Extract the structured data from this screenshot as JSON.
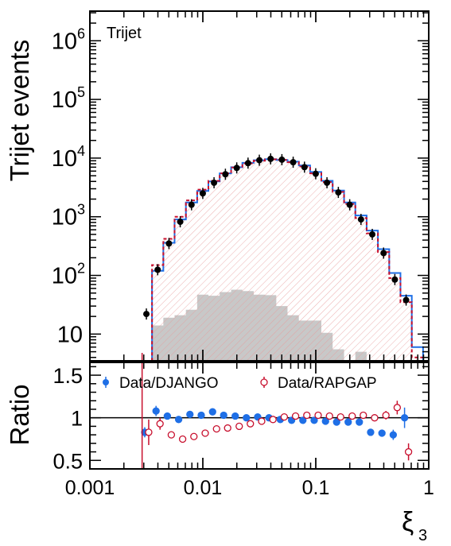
{
  "chart_data": [
    {
      "type": "histogram",
      "panel": "main",
      "label": "Trijet",
      "ylabel": "Trijet events",
      "xscale": "log",
      "yscale": "log",
      "xlim": [
        0.001,
        1
      ],
      "ylim": [
        3.5,
        3200000
      ],
      "y_ticks": [
        {
          "value": 10,
          "base": "10",
          "exp": ""
        },
        {
          "value": 100,
          "base": "10",
          "exp": "2"
        },
        {
          "value": 1000,
          "base": "10",
          "exp": "3"
        },
        {
          "value": 10000,
          "base": "10",
          "exp": "4"
        },
        {
          "value": 100000,
          "base": "10",
          "exp": "5"
        },
        {
          "value": 1000000,
          "base": "10",
          "exp": "6"
        }
      ],
      "bin_edges": [
        0.00282,
        0.00355,
        0.00447,
        0.00562,
        0.00708,
        0.00891,
        0.0112,
        0.0141,
        0.0178,
        0.0224,
        0.0282,
        0.0355,
        0.0447,
        0.0562,
        0.0708,
        0.0891,
        0.112,
        0.141,
        0.178,
        0.224,
        0.282,
        0.355,
        0.447,
        0.562,
        0.708,
        0.891
      ],
      "series": [
        {
          "kind": "points",
          "values": [
            22,
            125,
            350,
            820,
            1600,
            2500,
            3800,
            5300,
            6800,
            8200,
            9200,
            9700,
            9400,
            8500,
            7000,
            5400,
            3800,
            2600,
            1600,
            900,
            500,
            240,
            85,
            38,
            3.5
          ]
        },
        {
          "kind": "step",
          "color": "#1f6fe6",
          "values": [
            3.5,
            120,
            360,
            900,
            1750,
            2750,
            4000,
            5500,
            7000,
            8300,
            9200,
            9600,
            9300,
            8700,
            7500,
            5800,
            4100,
            2800,
            1750,
            1050,
            580,
            280,
            110,
            45,
            6
          ]
        },
        {
          "kind": "step-dashed-hatched",
          "color": "#c8102e",
          "values": [
            3.5,
            150,
            420,
            1000,
            1900,
            2900,
            4100,
            5500,
            6900,
            8100,
            9000,
            9500,
            9300,
            8500,
            7200,
            5500,
            3900,
            2650,
            1650,
            950,
            520,
            250,
            90,
            35,
            4
          ]
        },
        {
          "kind": "filled",
          "color": "#c8c8c8",
          "values": [
            3.5,
            14,
            19,
            21,
            26,
            47,
            45,
            52,
            57,
            54,
            47,
            46,
            30,
            21,
            17,
            17,
            10.5,
            5.5,
            3.5,
            5,
            3.5,
            3.5,
            3.5,
            3.5,
            3.5
          ]
        }
      ]
    },
    {
      "type": "scatter",
      "panel": "ratio",
      "ylabel": "Ratio",
      "xlabel_base": "ξ",
      "xlabel_sub": "3",
      "xscale": "log",
      "xlim": [
        0.001,
        1
      ],
      "ylim": [
        0.4,
        1.65
      ],
      "x_ticks": [
        "0.001",
        "0.01",
        "0.1",
        "1"
      ],
      "y_ticks": [
        "0.5",
        "1",
        "1.5"
      ],
      "reference_line": 1,
      "series": [
        {
          "name": "Data/DJANGO",
          "marker": "filled-circle",
          "color": "#1f6fe6",
          "x": [
            0.00316,
            0.00398,
            0.00501,
            0.00631,
            0.00794,
            0.01,
            0.0126,
            0.0158,
            0.02,
            0.0251,
            0.0316,
            0.0398,
            0.0501,
            0.0631,
            0.0794,
            0.1,
            0.126,
            0.158,
            0.2,
            0.251,
            0.316,
            0.398,
            0.501,
            0.631
          ],
          "y": [
            0.83,
            1.08,
            1.02,
            0.98,
            1.04,
            1.03,
            1.07,
            1.03,
            1.02,
            1.0,
            1.01,
            1.0,
            0.98,
            0.97,
            0.97,
            0.97,
            0.96,
            0.95,
            0.95,
            0.95,
            0.83,
            0.82,
            0.8,
            1.0
          ],
          "err": [
            0.06,
            0.06,
            0.04,
            0.03,
            0.02,
            0.02,
            0.02,
            0.02,
            0.02,
            0.02,
            0.02,
            0.02,
            0.02,
            0.02,
            0.02,
            0.02,
            0.02,
            0.02,
            0.02,
            0.03,
            0.03,
            0.04,
            0.06,
            0.12
          ]
        },
        {
          "name": "Data/RAPGAP",
          "marker": "open-circle",
          "color": "#c8102e",
          "x": [
            0.00316,
            0.00398,
            0.00501,
            0.00631,
            0.00794,
            0.01,
            0.0126,
            0.0158,
            0.02,
            0.0251,
            0.0316,
            0.0398,
            0.0501,
            0.0631,
            0.0794,
            0.1,
            0.126,
            0.158,
            0.2,
            0.251,
            0.316,
            0.398,
            0.501,
            0.631
          ],
          "y": [
            0.83,
            0.93,
            0.8,
            0.75,
            0.78,
            0.82,
            0.87,
            0.88,
            0.9,
            0.93,
            0.96,
            0.98,
            1.01,
            1.02,
            1.03,
            1.03,
            1.02,
            1.01,
            1.02,
            1.03,
            1.0,
            1.03,
            1.12,
            0.6
          ],
          "err": [
            0.15,
            0.07,
            0.04,
            0.03,
            0.02,
            0.02,
            0.02,
            0.02,
            0.02,
            0.02,
            0.02,
            0.02,
            0.02,
            0.02,
            0.02,
            0.02,
            0.02,
            0.02,
            0.02,
            0.03,
            0.04,
            0.05,
            0.08,
            0.1
          ]
        }
      ],
      "legend": "top"
    }
  ]
}
